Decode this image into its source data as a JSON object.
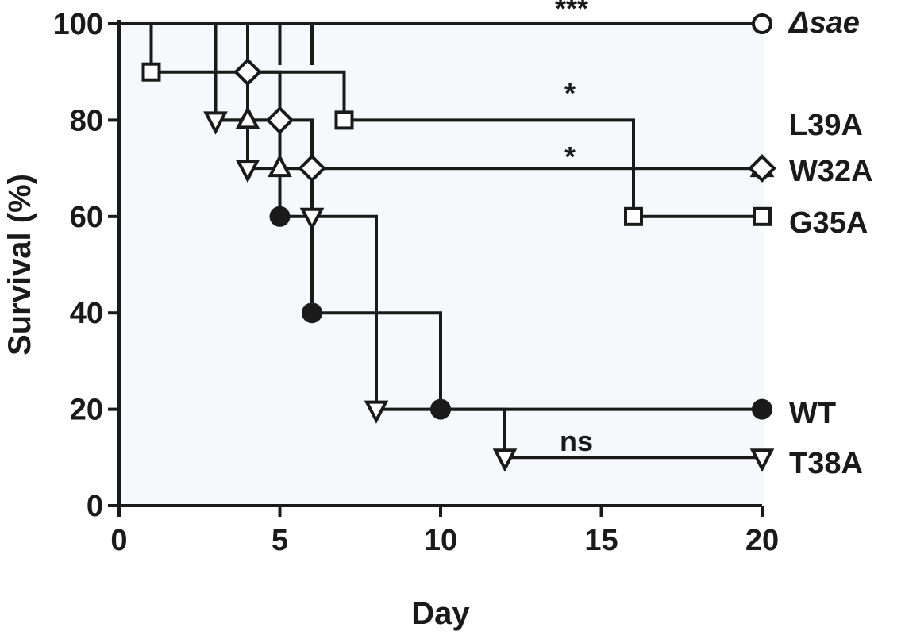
{
  "chart_data": {
    "type": "line",
    "subtype": "kaplan-meier-survival",
    "xlabel": "Day",
    "ylabel": "Survival (%)",
    "xlim": [
      0,
      20
    ],
    "ylim": [
      0,
      100
    ],
    "xticks": [
      0,
      5,
      10,
      15,
      20
    ],
    "yticks": [
      0,
      20,
      40,
      60,
      80,
      100
    ],
    "grid": false,
    "colors": {
      "ink": "#1a1a1a",
      "plot_background": "#f7f8fc",
      "marker_fill_open": "#ffffff"
    },
    "series": [
      {
        "name": "Δsae",
        "label_italic": true,
        "marker": "circle-open",
        "steps": [
          [
            0,
            100
          ],
          [
            20,
            100
          ]
        ],
        "drops": [
          1,
          3,
          4,
          5,
          6
        ],
        "markers": [
          [
            20,
            100
          ]
        ]
      },
      {
        "name": "L39A",
        "marker": "diamond-open",
        "steps": [
          [
            0,
            100
          ],
          [
            4,
            90
          ],
          [
            5,
            80
          ],
          [
            6,
            70
          ],
          [
            20,
            70
          ]
        ],
        "markers": [
          [
            4,
            90
          ],
          [
            5,
            80
          ],
          [
            6,
            70
          ],
          [
            20,
            70
          ]
        ]
      },
      {
        "name": "W32A",
        "marker": "triangle-up-open",
        "steps": [
          [
            0,
            100
          ],
          [
            4,
            80
          ],
          [
            5,
            70
          ],
          [
            20,
            70
          ]
        ],
        "markers": [
          [
            4,
            80
          ],
          [
            5,
            70
          ],
          [
            20,
            70
          ]
        ]
      },
      {
        "name": "G35A",
        "marker": "square-open",
        "steps": [
          [
            0,
            100
          ],
          [
            1,
            90
          ],
          [
            7,
            80
          ],
          [
            16,
            60
          ],
          [
            20,
            60
          ]
        ],
        "markers": [
          [
            1,
            90
          ],
          [
            7,
            80
          ],
          [
            16,
            60
          ],
          [
            20,
            60
          ]
        ]
      },
      {
        "name": "WT",
        "marker": "circle-filled",
        "steps": [
          [
            0,
            100
          ],
          [
            3,
            80
          ],
          [
            5,
            60
          ],
          [
            6,
            40
          ],
          [
            10,
            20
          ],
          [
            20,
            20
          ]
        ],
        "markers": [
          [
            5,
            60
          ],
          [
            6,
            40
          ],
          [
            10,
            20
          ],
          [
            20,
            20
          ]
        ]
      },
      {
        "name": "T38A",
        "marker": "triangle-down-open",
        "steps": [
          [
            0,
            100
          ],
          [
            3,
            80
          ],
          [
            4,
            70
          ],
          [
            6,
            60
          ],
          [
            8,
            20
          ],
          [
            12,
            10
          ],
          [
            20,
            10
          ]
        ],
        "markers": [
          [
            3,
            80
          ],
          [
            4,
            70
          ],
          [
            6,
            60
          ],
          [
            8,
            20
          ],
          [
            12,
            10
          ],
          [
            20,
            10
          ]
        ]
      }
    ],
    "annotations": [
      {
        "text": "***",
        "x": 14,
        "y": 100
      },
      {
        "text": "*",
        "x": 14,
        "y": 80
      },
      {
        "text": "*",
        "x": 14,
        "y": 70
      },
      {
        "text": "ns",
        "x": 14,
        "y": 10
      }
    ]
  }
}
